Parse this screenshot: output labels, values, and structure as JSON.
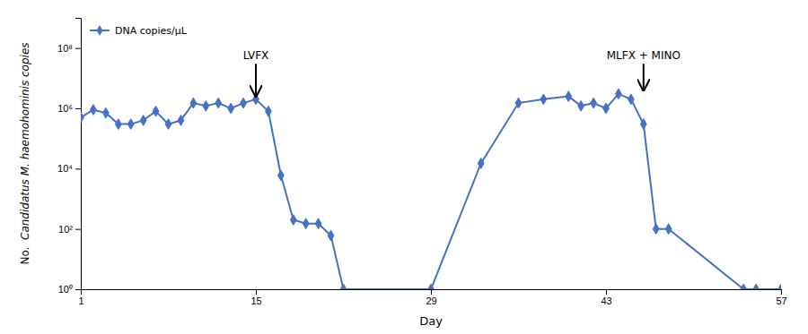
{
  "chart_data": {
    "type": "line",
    "x": [
      1,
      2,
      3,
      4,
      5,
      6,
      7,
      8,
      9,
      10,
      11,
      12,
      13,
      14,
      15,
      16,
      17,
      18,
      19,
      20,
      21,
      22,
      29,
      33,
      36,
      38,
      40,
      41,
      42,
      43,
      44,
      45,
      46,
      47,
      48,
      54,
      55,
      57
    ],
    "series": [
      {
        "name": "DNA copies/μL",
        "color": "#4472C4",
        "marker": "diamond",
        "values": [
          500000,
          900000,
          700000,
          300000,
          300000,
          400000,
          800000,
          300000,
          400000,
          1500000,
          1200000,
          1500000,
          1000000,
          1500000,
          2000000,
          800000,
          6000,
          200,
          150,
          150,
          60,
          1,
          1,
          15000,
          1500000,
          2000000,
          2500000,
          1200000,
          1500000,
          1000000,
          3000000,
          2000000,
          300000,
          100,
          100,
          1,
          1,
          1
        ]
      }
    ],
    "xlabel": "Day",
    "ylabel": [
      "No. ",
      "Candidatus",
      "M. haemohominis copies"
    ],
    "log": "y",
    "xlim": [
      1,
      57
    ],
    "xticks": [
      1,
      15,
      29,
      43,
      57
    ],
    "ylim": [
      1,
      1000000000
    ],
    "yticks": [
      {
        "value": 1,
        "label": "10⁰"
      },
      {
        "value": 100,
        "label": "10²"
      },
      {
        "value": 10000,
        "label": "10⁴"
      },
      {
        "value": 1000000,
        "label": "10⁶"
      },
      {
        "value": 100000000,
        "label": "10⁸"
      }
    ],
    "grid": false,
    "legend": "upper left",
    "annotations": [
      {
        "text": "LVFX",
        "x": 15,
        "y_tail": 30000000,
        "y_head": 2500000
      },
      {
        "text": "MLFX + MINO",
        "x": 46,
        "y_tail": 30000000,
        "y_head": 4000000
      }
    ]
  }
}
